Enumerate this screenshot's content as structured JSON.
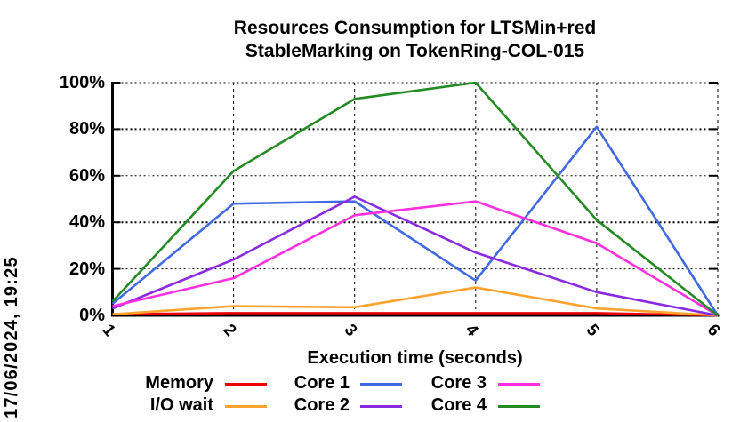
{
  "title": {
    "line1": "Resources Consumption for LTSMin+red",
    "line2": "StableMarking on TokenRing-COL-015"
  },
  "timestamp": "17/06/2024, 19:25",
  "chart_data": {
    "type": "line",
    "title": "Resources Consumption for LTSMin+red StableMarking on TokenRing-COL-015",
    "xlabel": "Execution time (seconds)",
    "ylabel": "",
    "x": [
      1,
      2,
      3,
      4,
      5,
      6
    ],
    "x_ticks": [
      "1",
      "2",
      "3",
      "4",
      "5",
      "6"
    ],
    "y_ticks": [
      "0%",
      "20%",
      "40%",
      "60%",
      "80%",
      "100%"
    ],
    "y_tick_values": [
      0,
      20,
      40,
      60,
      80,
      100
    ],
    "xlim": [
      1,
      6
    ],
    "ylim": [
      0,
      100
    ],
    "grid": true,
    "legend_position": "bottom",
    "axis_color": "#000000",
    "series": [
      {
        "name": "Memory",
        "color": "#ee0000",
        "values": [
          0.5,
          1,
          1,
          1,
          1,
          0
        ]
      },
      {
        "name": "I/O wait",
        "color": "#ffa32e",
        "values": [
          0.5,
          4,
          3.5,
          12,
          3,
          0
        ]
      },
      {
        "name": "Core 1",
        "color": "#4169e1",
        "values": [
          5,
          48,
          49,
          15,
          81,
          0
        ]
      },
      {
        "name": "Core 2",
        "color": "#8a2be2",
        "values": [
          3,
          24,
          51,
          27,
          10,
          0
        ]
      },
      {
        "name": "Core 3",
        "color": "#ff30e0",
        "values": [
          4,
          16,
          43,
          49,
          31,
          0
        ]
      },
      {
        "name": "Core 4",
        "color": "#228b22",
        "values": [
          6,
          62,
          93,
          100,
          41,
          0
        ]
      }
    ]
  }
}
